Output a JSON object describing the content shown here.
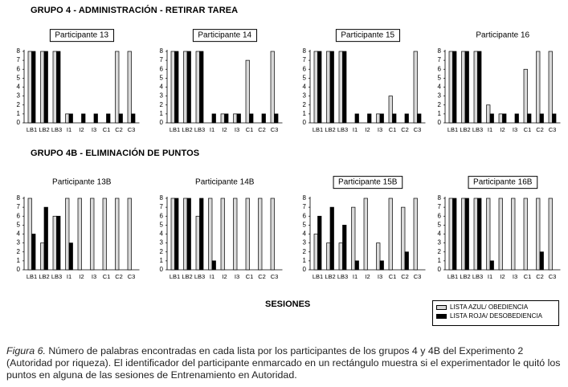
{
  "header": {
    "group4_title": "GRUPO 4 - ADMINISTRACIÓN - RETIRAR TAREA",
    "group4b_title": "GRUPO 4B - ELIMINACIÓN DE PUNTOS"
  },
  "x_axis_label": "SESIONES",
  "legend": {
    "items": [
      {
        "label": "LISTA AZUL/ OBEDIENCIA",
        "color": "#d9d9d9"
      },
      {
        "label": "LISTA ROJA/ DESOBEDIENCIA",
        "color": "#000000"
      }
    ]
  },
  "caption": {
    "figure_label": "Figura 6.",
    "text": "Número de palabras encontradas en cada lista por los participantes de los grupos 4 y 4B del Experimento 2 (Autoridad por riqueza). El identificador del participante enmarcado en un rectángulo muestra si el experimentador le quitó los puntos en alguna de las sesiones de Entrenamiento en Autoridad."
  },
  "colors": {
    "blue_list_fill": "#d9d9d9",
    "red_list_fill": "#000000"
  },
  "chart_data": [
    {
      "type": "bar",
      "title": "Participante 13",
      "title_boxed": true,
      "categories": [
        "LB1",
        "LB2",
        "LB3",
        "I1",
        "I2",
        "I3",
        "C1",
        "C2",
        "C3"
      ],
      "ylim": [
        0,
        8
      ],
      "yticks": [
        0,
        1,
        2,
        3,
        4,
        5,
        6,
        7,
        8
      ],
      "series": [
        {
          "name": "LISTA AZUL/ OBEDIENCIA",
          "values": [
            8,
            8,
            8,
            1,
            0,
            0,
            0,
            8,
            8
          ]
        },
        {
          "name": "LISTA ROJA/ DESOBEDIENCIA",
          "values": [
            8,
            8,
            8,
            1,
            1,
            1,
            1,
            1,
            1
          ]
        }
      ]
    },
    {
      "type": "bar",
      "title": "Participante 14",
      "title_boxed": true,
      "categories": [
        "LB1",
        "LB2",
        "LB3",
        "I1",
        "I2",
        "I3",
        "C1",
        "C2",
        "C3"
      ],
      "ylim": [
        0,
        8
      ],
      "yticks": [
        0,
        1,
        2,
        3,
        4,
        5,
        6,
        7,
        8
      ],
      "series": [
        {
          "name": "LISTA AZUL/ OBEDIENCIA",
          "values": [
            8,
            8,
            8,
            0,
            1,
            1,
            7,
            0,
            8
          ]
        },
        {
          "name": "LISTA ROJA/ DESOBEDIENCIA",
          "values": [
            8,
            8,
            8,
            1,
            1,
            1,
            1,
            1,
            1
          ]
        }
      ]
    },
    {
      "type": "bar",
      "title": "Participante 15",
      "title_boxed": true,
      "categories": [
        "LB1",
        "LB2",
        "LB3",
        "I1",
        "I2",
        "I3",
        "C1",
        "C2",
        "C3"
      ],
      "ylim": [
        0,
        8
      ],
      "yticks": [
        0,
        1,
        2,
        3,
        4,
        5,
        6,
        7,
        8
      ],
      "series": [
        {
          "name": "LISTA AZUL/ OBEDIENCIA",
          "values": [
            8,
            8,
            8,
            0,
            0,
            1,
            3,
            0,
            8
          ]
        },
        {
          "name": "LISTA ROJA/ DESOBEDIENCIA",
          "values": [
            8,
            8,
            8,
            1,
            1,
            1,
            1,
            1,
            1
          ]
        }
      ]
    },
    {
      "type": "bar",
      "title": "Participante 16",
      "title_boxed": false,
      "categories": [
        "LB1",
        "LB2",
        "LB3",
        "I1",
        "I2",
        "I3",
        "C1",
        "C2",
        "C3"
      ],
      "ylim": [
        0,
        8
      ],
      "yticks": [
        0,
        1,
        2,
        3,
        4,
        5,
        6,
        7,
        8
      ],
      "series": [
        {
          "name": "LISTA AZUL/ OBEDIENCIA",
          "values": [
            8,
            8,
            8,
            2,
            1,
            0,
            6,
            8,
            8
          ]
        },
        {
          "name": "LISTA ROJA/ DESOBEDIENCIA",
          "values": [
            8,
            8,
            8,
            1,
            1,
            1,
            1,
            1,
            1
          ]
        }
      ]
    },
    {
      "type": "bar",
      "title": "Participante 13B",
      "title_boxed": false,
      "categories": [
        "LB1",
        "LB2",
        "LB3",
        "I1",
        "I2",
        "I3",
        "C1",
        "C2",
        "C3"
      ],
      "ylim": [
        0,
        8
      ],
      "yticks": [
        0,
        1,
        2,
        3,
        4,
        5,
        6,
        7,
        8
      ],
      "series": [
        {
          "name": "LISTA AZUL/ OBEDIENCIA",
          "values": [
            8,
            3,
            6,
            8,
            8,
            8,
            8,
            8,
            8
          ]
        },
        {
          "name": "LISTA ROJA/ DESOBEDIENCIA",
          "values": [
            4,
            7,
            6,
            3,
            0,
            0,
            0,
            0,
            0
          ]
        }
      ]
    },
    {
      "type": "bar",
      "title": "Participante 14B",
      "title_boxed": false,
      "categories": [
        "LB1",
        "LB2",
        "LB3",
        "I1",
        "I2",
        "I3",
        "C1",
        "C2",
        "C3"
      ],
      "ylim": [
        0,
        8
      ],
      "yticks": [
        0,
        1,
        2,
        3,
        4,
        5,
        6,
        7,
        8
      ],
      "series": [
        {
          "name": "LISTA AZUL/ OBEDIENCIA",
          "values": [
            8,
            8,
            6,
            8,
            8,
            8,
            8,
            8,
            8
          ]
        },
        {
          "name": "LISTA ROJA/ DESOBEDIENCIA",
          "values": [
            8,
            8,
            8,
            1,
            0,
            0,
            0,
            0,
            0
          ]
        }
      ]
    },
    {
      "type": "bar",
      "title": "Participante 15B",
      "title_boxed": true,
      "categories": [
        "LB1",
        "LB2",
        "LB3",
        "I1",
        "I2",
        "I3",
        "C1",
        "C2",
        "C3"
      ],
      "ylim": [
        0,
        8
      ],
      "yticks": [
        0,
        1,
        2,
        3,
        4,
        5,
        6,
        7,
        8
      ],
      "series": [
        {
          "name": "LISTA AZUL/ OBEDIENCIA",
          "values": [
            4,
            3,
            3,
            7,
            8,
            3,
            8,
            7,
            8
          ]
        },
        {
          "name": "LISTA ROJA/ DESOBEDIENCIA",
          "values": [
            6,
            7,
            5,
            1,
            0,
            1,
            0,
            2,
            0
          ]
        }
      ]
    },
    {
      "type": "bar",
      "title": "Participante 16B",
      "title_boxed": true,
      "categories": [
        "LB1",
        "LB2",
        "LB3",
        "I1",
        "I2",
        "I3",
        "C1",
        "C2",
        "C3"
      ],
      "ylim": [
        0,
        8
      ],
      "yticks": [
        0,
        1,
        2,
        3,
        4,
        5,
        6,
        7,
        8
      ],
      "series": [
        {
          "name": "LISTA AZUL/ OBEDIENCIA",
          "values": [
            8,
            8,
            8,
            8,
            8,
            8,
            8,
            8,
            8
          ]
        },
        {
          "name": "LISTA ROJA/ DESOBEDIENCIA",
          "values": [
            8,
            8,
            8,
            1,
            0,
            0,
            0,
            2,
            0
          ]
        }
      ]
    }
  ]
}
